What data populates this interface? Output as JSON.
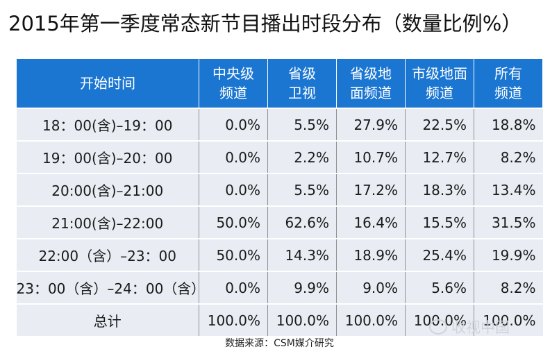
{
  "chart_data": {
    "type": "table",
    "title": "2015年第一季度常态新节目播出时段分布（数量比例%）",
    "columns": [
      "开始时间",
      "中央级频道",
      "省级卫视",
      "省级地面频道",
      "市级地面频道",
      "所有频道"
    ],
    "header_lines": [
      [
        "开始时间"
      ],
      [
        "中央级",
        "频道"
      ],
      [
        "省级",
        "卫视"
      ],
      [
        "省级地",
        "面频道"
      ],
      [
        "市级地面",
        "频道"
      ],
      [
        "所有",
        "频道"
      ]
    ],
    "rows": [
      [
        "18：00(含)–19：00",
        "0.0%",
        "5.5%",
        "27.9%",
        "22.5%",
        "18.8%"
      ],
      [
        "19：00(含)–20：00",
        "0.0%",
        "2.2%",
        "10.7%",
        "12.7%",
        "8.2%"
      ],
      [
        "20:00(含)–21:00",
        "0.0%",
        "5.5%",
        "17.2%",
        "18.3%",
        "13.4%"
      ],
      [
        "21:00(含)–22:00",
        "50.0%",
        "62.6%",
        "16.4%",
        "15.5%",
        "31.5%"
      ],
      [
        "22:00（含）–23：00",
        "50.0%",
        "14.3%",
        "18.9%",
        "25.4%",
        "19.9%"
      ],
      [
        "23：00（含）–24：00（含）",
        "0.0%",
        "9.9%",
        "9.0%",
        "5.6%",
        "8.2%"
      ],
      [
        "总计",
        "100.0%",
        "100.0%",
        "100.0%",
        "100.0%",
        "100.0%"
      ]
    ]
  },
  "source": "数据来源：CSM媒介研究",
  "watermark": "收视中国",
  "colors": {
    "header_bg": "#1b76d2",
    "cell_bg": "#e9edf3"
  }
}
